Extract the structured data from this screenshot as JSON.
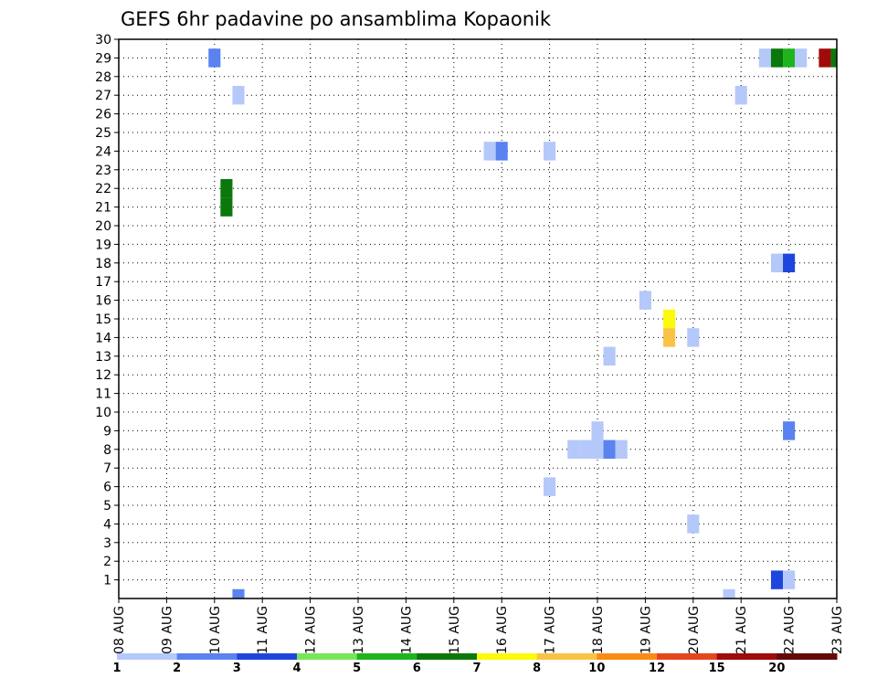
{
  "chart_data": {
    "type": "heatmap",
    "title": "GEFS 6hr padavine po ansamblima Kopaonik",
    "xlabel": "",
    "ylabel": "",
    "x_ticks": [
      "08 AUG",
      "09 AUG",
      "10 AUG",
      "11 AUG",
      "12 AUG",
      "13 AUG",
      "14 AUG",
      "15 AUG",
      "16 AUG",
      "17 AUG",
      "18 AUG",
      "19 AUG",
      "20 AUG",
      "21 AUG",
      "22 AUG",
      "23 AUG"
    ],
    "xlim": [
      "2019-08-08 00:00",
      "2019-08-23 00:00"
    ],
    "step_hours": 6,
    "y_ticks": [
      1,
      2,
      3,
      4,
      5,
      6,
      7,
      8,
      9,
      10,
      11,
      12,
      13,
      14,
      15,
      16,
      17,
      18,
      19,
      20,
      21,
      22,
      23,
      24,
      25,
      26,
      27,
      28,
      29,
      30
    ],
    "ylim": [
      0,
      30
    ],
    "grid": true,
    "legend": {
      "placement": "bottom",
      "labels": [
        "1",
        "2",
        "3",
        "4",
        "5",
        "6",
        "7",
        "8",
        "10",
        "12",
        "15",
        "20"
      ],
      "colors": [
        "#b4c8fa",
        "#5a82f0",
        "#1e46dc",
        "#78e65a",
        "#1eb41e",
        "#0a780a",
        "#fafa0a",
        "#fac346",
        "#fa8c14",
        "#e6461e",
        "#a00a0a",
        "#640a0a"
      ]
    },
    "cells": [
      {
        "time": "2019-08-10 00:00",
        "member": 29,
        "value": 2.5
      },
      {
        "time": "2019-08-10 06:00",
        "member": 22,
        "value": 6.5
      },
      {
        "time": "2019-08-10 06:00",
        "member": 21,
        "value": 6.5
      },
      {
        "time": "2019-08-10 12:00",
        "member": 27,
        "value": 1.5
      },
      {
        "time": "2019-08-10 12:00",
        "member": 0,
        "value": 2.5
      },
      {
        "time": "2019-08-15 18:00",
        "member": 24,
        "value": 1.5
      },
      {
        "time": "2019-08-16 00:00",
        "member": 24,
        "value": 2.5
      },
      {
        "time": "2019-08-17 00:00",
        "member": 24,
        "value": 1.5
      },
      {
        "time": "2019-08-17 00:00",
        "member": 6,
        "value": 1.5
      },
      {
        "time": "2019-08-17 12:00",
        "member": 8,
        "value": 1.5
      },
      {
        "time": "2019-08-17 18:00",
        "member": 8,
        "value": 1.5
      },
      {
        "time": "2019-08-18 00:00",
        "member": 9,
        "value": 1.5
      },
      {
        "time": "2019-08-18 00:00",
        "member": 8,
        "value": 1.5
      },
      {
        "time": "2019-08-18 06:00",
        "member": 13,
        "value": 1.5
      },
      {
        "time": "2019-08-18 06:00",
        "member": 8,
        "value": 2.5
      },
      {
        "time": "2019-08-18 12:00",
        "member": 8,
        "value": 1.5
      },
      {
        "time": "2019-08-19 00:00",
        "member": 16,
        "value": 1.5
      },
      {
        "time": "2019-08-19 12:00",
        "member": 15,
        "value": 7.5
      },
      {
        "time": "2019-08-19 12:00",
        "member": 14,
        "value": 9
      },
      {
        "time": "2019-08-20 00:00",
        "member": 14,
        "value": 1.5
      },
      {
        "time": "2019-08-20 00:00",
        "member": 4,
        "value": 1.5
      },
      {
        "time": "2019-08-20 18:00",
        "member": 0,
        "value": 1.5
      },
      {
        "time": "2019-08-21 00:00",
        "member": 27,
        "value": 1.5
      },
      {
        "time": "2019-08-21 12:00",
        "member": 29,
        "value": 1.5
      },
      {
        "time": "2019-08-21 18:00",
        "member": 29,
        "value": 6.5
      },
      {
        "time": "2019-08-21 18:00",
        "member": 18,
        "value": 1.5
      },
      {
        "time": "2019-08-21 18:00",
        "member": 1,
        "value": 3.5
      },
      {
        "time": "2019-08-22 00:00",
        "member": 29,
        "value": 5.5
      },
      {
        "time": "2019-08-22 00:00",
        "member": 18,
        "value": 3.5
      },
      {
        "time": "2019-08-22 00:00",
        "member": 9,
        "value": 2.5
      },
      {
        "time": "2019-08-22 00:00",
        "member": 1,
        "value": 1.5
      },
      {
        "time": "2019-08-22 06:00",
        "member": 29,
        "value": 1.5
      },
      {
        "time": "2019-08-22 18:00",
        "member": 29,
        "value": 17
      },
      {
        "time": "2019-08-23 00:00",
        "member": 29,
        "value": 6.5
      }
    ]
  }
}
